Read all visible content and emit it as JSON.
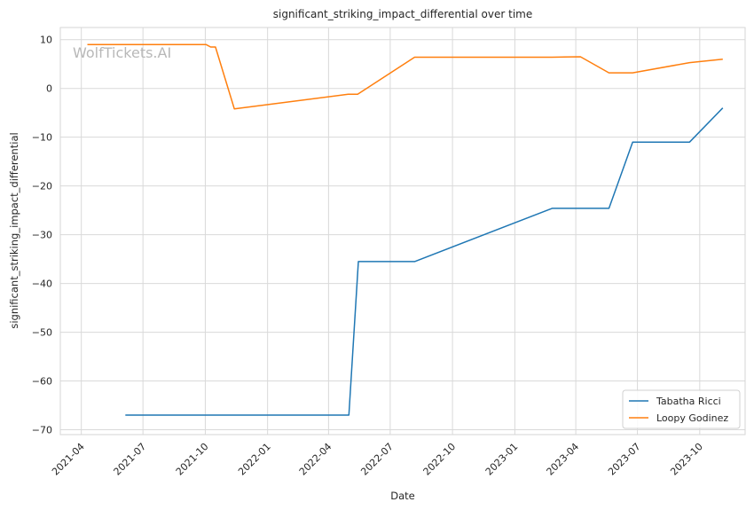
{
  "chart_data": {
    "type": "line",
    "title": "significant_striking_impact_differential over time",
    "xlabel": "Date",
    "ylabel": "significant_striking_impact_differential",
    "watermark": "WolfTickets.AI",
    "x_type": "date",
    "xlim": [
      "2021-03-01",
      "2023-12-07"
    ],
    "ylim": [
      -71,
      12.5
    ],
    "x_ticks": [
      {
        "date": "2021-04-01",
        "label": "2021-04"
      },
      {
        "date": "2021-07-01",
        "label": "2021-07"
      },
      {
        "date": "2021-10-01",
        "label": "2021-10"
      },
      {
        "date": "2022-01-01",
        "label": "2022-01"
      },
      {
        "date": "2022-04-01",
        "label": "2022-04"
      },
      {
        "date": "2022-07-01",
        "label": "2022-07"
      },
      {
        "date": "2022-10-01",
        "label": "2022-10"
      },
      {
        "date": "2023-01-01",
        "label": "2023-01"
      },
      {
        "date": "2023-04-01",
        "label": "2023-04"
      },
      {
        "date": "2023-07-01",
        "label": "2023-07"
      },
      {
        "date": "2023-10-01",
        "label": "2023-10"
      }
    ],
    "y_ticks": [
      10,
      0,
      -10,
      -20,
      -30,
      -40,
      -50,
      -60,
      -70
    ],
    "y_tick_labels": [
      "10",
      "0",
      "−10",
      "−20",
      "−30",
      "−40",
      "−50",
      "−60",
      "−70"
    ],
    "grid": true,
    "legend_position": "bottom-right",
    "series": [
      {
        "name": "Tabatha Ricci",
        "color": "#1f77b4",
        "points": [
          {
            "x": "2021-06-05",
            "y": -67
          },
          {
            "x": "2022-05-01",
            "y": -67
          },
          {
            "x": "2022-05-15",
            "y": -35.5
          },
          {
            "x": "2022-08-06",
            "y": -35.5
          },
          {
            "x": "2023-02-25",
            "y": -24.6
          },
          {
            "x": "2023-05-20",
            "y": -24.6
          },
          {
            "x": "2023-06-24",
            "y": -11
          },
          {
            "x": "2023-09-16",
            "y": -11
          },
          {
            "x": "2023-11-04",
            "y": -4
          }
        ]
      },
      {
        "name": "Loopy Godinez",
        "color": "#ff7f0e",
        "points": [
          {
            "x": "2021-04-10",
            "y": 9
          },
          {
            "x": "2021-10-02",
            "y": 9
          },
          {
            "x": "2021-10-09",
            "y": 8.5
          },
          {
            "x": "2021-10-16",
            "y": 8.5
          },
          {
            "x": "2021-11-13",
            "y": -4.2
          },
          {
            "x": "2022-04-30",
            "y": -1.2
          },
          {
            "x": "2022-05-14",
            "y": -1.2
          },
          {
            "x": "2022-08-06",
            "y": 6.4
          },
          {
            "x": "2023-02-25",
            "y": 6.4
          },
          {
            "x": "2023-04-08",
            "y": 6.5
          },
          {
            "x": "2023-05-20",
            "y": 3.2
          },
          {
            "x": "2023-06-24",
            "y": 3.2
          },
          {
            "x": "2023-09-16",
            "y": 5.3
          },
          {
            "x": "2023-11-04",
            "y": 6
          }
        ]
      }
    ]
  }
}
